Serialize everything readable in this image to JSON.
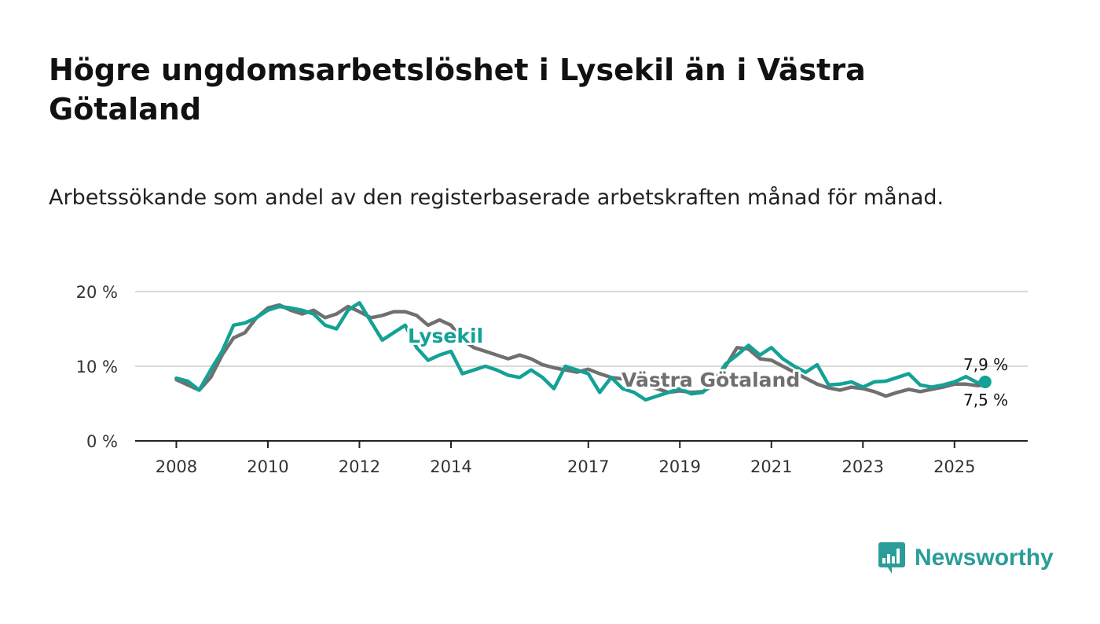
{
  "title": "Högre ungdomsarbetslöshet i Lysekil än i Västra Götaland",
  "subtitle": "Arbetssökande som andel av den registerbaserade arbetskraften månad för månad.",
  "brand": {
    "name": "Newsworthy",
    "icon": "newsworthy-logo-icon"
  },
  "colors": {
    "lysekil": "#14a196",
    "vastra": "#707070",
    "grid": "#d9d9d9",
    "axis": "#222222"
  },
  "chart_data": {
    "type": "line",
    "title": "Högre ungdomsarbetslöshet i Lysekil än i Västra Götaland",
    "xlabel": "",
    "ylabel": "",
    "ylim": [
      0,
      20
    ],
    "xlim": [
      2007.1,
      2026.6
    ],
    "y_ticks": [
      0,
      10,
      20
    ],
    "y_tick_labels": [
      "0 %",
      "10 %",
      "20 %"
    ],
    "x_ticks": [
      2008,
      2010,
      2012,
      2014,
      2017,
      2019,
      2021,
      2023,
      2025
    ],
    "x_tick_labels": [
      "2008",
      "2010",
      "2012",
      "2014",
      "2017",
      "2019",
      "2021",
      "2023",
      "2025"
    ],
    "x": [
      2008.0,
      2008.25,
      2008.5,
      2008.75,
      2009.0,
      2009.25,
      2009.5,
      2009.75,
      2010.0,
      2010.25,
      2010.5,
      2010.75,
      2011.0,
      2011.25,
      2011.5,
      2011.75,
      2012.0,
      2012.25,
      2012.5,
      2012.75,
      2013.0,
      2013.25,
      2013.5,
      2013.75,
      2014.0,
      2014.25,
      2014.5,
      2014.75,
      2015.0,
      2015.25,
      2015.5,
      2015.75,
      2016.0,
      2016.25,
      2016.5,
      2016.75,
      2017.0,
      2017.25,
      2017.5,
      2017.75,
      2018.0,
      2018.25,
      2018.5,
      2018.75,
      2019.0,
      2019.25,
      2019.5,
      2019.75,
      2020.0,
      2020.25,
      2020.5,
      2020.75,
      2021.0,
      2021.25,
      2021.5,
      2021.75,
      2022.0,
      2022.25,
      2022.5,
      2022.75,
      2023.0,
      2023.25,
      2023.5,
      2023.75,
      2024.0,
      2024.25,
      2024.5,
      2024.75,
      2025.0,
      2025.25,
      2025.5,
      2025.67
    ],
    "series": [
      {
        "name": "Västra Götaland",
        "values": [
          8.2,
          7.5,
          6.8,
          8.5,
          11.5,
          13.8,
          14.5,
          16.5,
          17.8,
          18.2,
          17.5,
          17.0,
          17.5,
          16.5,
          17.0,
          18.0,
          17.3,
          16.5,
          16.8,
          17.3,
          17.3,
          16.8,
          15.5,
          16.2,
          15.5,
          13.5,
          12.5,
          12.0,
          11.5,
          11.0,
          11.5,
          11.0,
          10.2,
          9.8,
          9.5,
          9.2,
          9.6,
          9.0,
          8.5,
          8.3,
          8.0,
          7.5,
          7.0,
          6.5,
          6.7,
          6.5,
          6.6,
          7.5,
          10.0,
          12.5,
          12.3,
          11.0,
          10.8,
          10.0,
          9.2,
          8.4,
          7.6,
          7.1,
          6.8,
          7.2,
          7.0,
          6.6,
          6.0,
          6.5,
          6.9,
          6.6,
          6.9,
          7.2,
          7.6,
          7.6,
          7.4,
          7.5
        ]
      },
      {
        "name": "Lysekil",
        "values": [
          8.4,
          8.0,
          6.8,
          9.5,
          12.0,
          15.5,
          15.8,
          16.5,
          17.5,
          18.0,
          17.8,
          17.5,
          17.0,
          15.5,
          15.0,
          17.5,
          18.5,
          16.0,
          13.5,
          14.5,
          15.5,
          12.5,
          10.8,
          11.5,
          12.0,
          9.0,
          9.5,
          10.0,
          9.5,
          8.8,
          8.5,
          9.5,
          8.5,
          7.0,
          10.0,
          9.5,
          9.0,
          6.5,
          8.5,
          7.0,
          6.5,
          5.5,
          6.0,
          6.5,
          7.0,
          6.3,
          6.5,
          8.0,
          10.3,
          11.5,
          12.8,
          11.5,
          12.5,
          11.0,
          10.0,
          9.2,
          10.2,
          7.5,
          7.6,
          7.9,
          7.2,
          7.9,
          8.0,
          8.5,
          9.0,
          7.5,
          7.2,
          7.5,
          7.9,
          8.6,
          7.8,
          7.9
        ]
      }
    ],
    "labels": {
      "lysekil": "Lysekil",
      "vastra": "Västra Götaland",
      "end_lysekil": "7,9 %",
      "end_vastra": "7,5 %"
    }
  }
}
